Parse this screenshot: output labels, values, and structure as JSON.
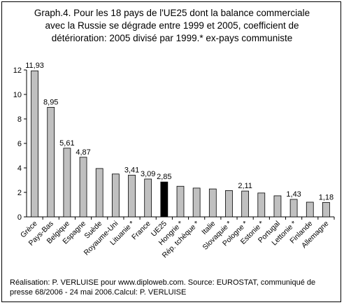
{
  "title": "Graph.4. Pour les 18 pays de l'UE25 dont la balance commerciale\navec la Russie se dégrade entre 1999 et 2005, coefficient de\ndétérioration: 2005 divisé par 1999.* ex-pays communiste",
  "footer": "Réalisation: P. VERLUISE pour www.diploweb.com. Source: EUROSTAT, communiqué de presse 68/2006 - 24 mai 2006.Calcul: P. VERLUISE",
  "colors": {
    "bar": "#c0c0c0",
    "highlight_bar": "#000000",
    "plot_bg": "#ffffff",
    "grid": "#c0c0c0"
  },
  "chart_data": {
    "type": "bar",
    "title": "Graph.4. Pour les 18 pays de l'UE25 dont la balance commerciale avec la Russie se dégrade entre 1999 et 2005, coefficient de détérioration: 2005 divisé par 1999.* ex-pays communiste",
    "xlabel": "",
    "ylabel": "",
    "ylim": [
      0,
      12
    ],
    "yticks": [
      0,
      2,
      4,
      6,
      8,
      10,
      12
    ],
    "grid": false,
    "legend": "none",
    "categories": [
      "Grèce",
      "Pays-Bas",
      "Belgique",
      "Espagne",
      "Suède",
      "Royaume-Uni",
      "Lituanie *",
      "France",
      "UE25",
      "Hongrie *",
      "Rép. tchèque *",
      "Italie",
      "Slovaquie *",
      "Pologne *",
      "Estonie *",
      "Portugal",
      "Lettonie *",
      "Finlande",
      "Allemagne"
    ],
    "values": [
      11.93,
      8.95,
      5.61,
      4.87,
      3.95,
      3.5,
      3.41,
      3.09,
      2.85,
      2.5,
      2.35,
      2.28,
      2.15,
      2.11,
      1.95,
      1.72,
      1.43,
      1.2,
      1.18
    ],
    "data_labels": [
      "11,93",
      "8,95",
      "5,61",
      "4,87",
      "",
      "",
      "3,41",
      "3,09",
      "2,85",
      "",
      "",
      "",
      "",
      "2,11",
      "",
      "",
      "1,43",
      "",
      "1,18"
    ],
    "highlight_index": 8
  }
}
